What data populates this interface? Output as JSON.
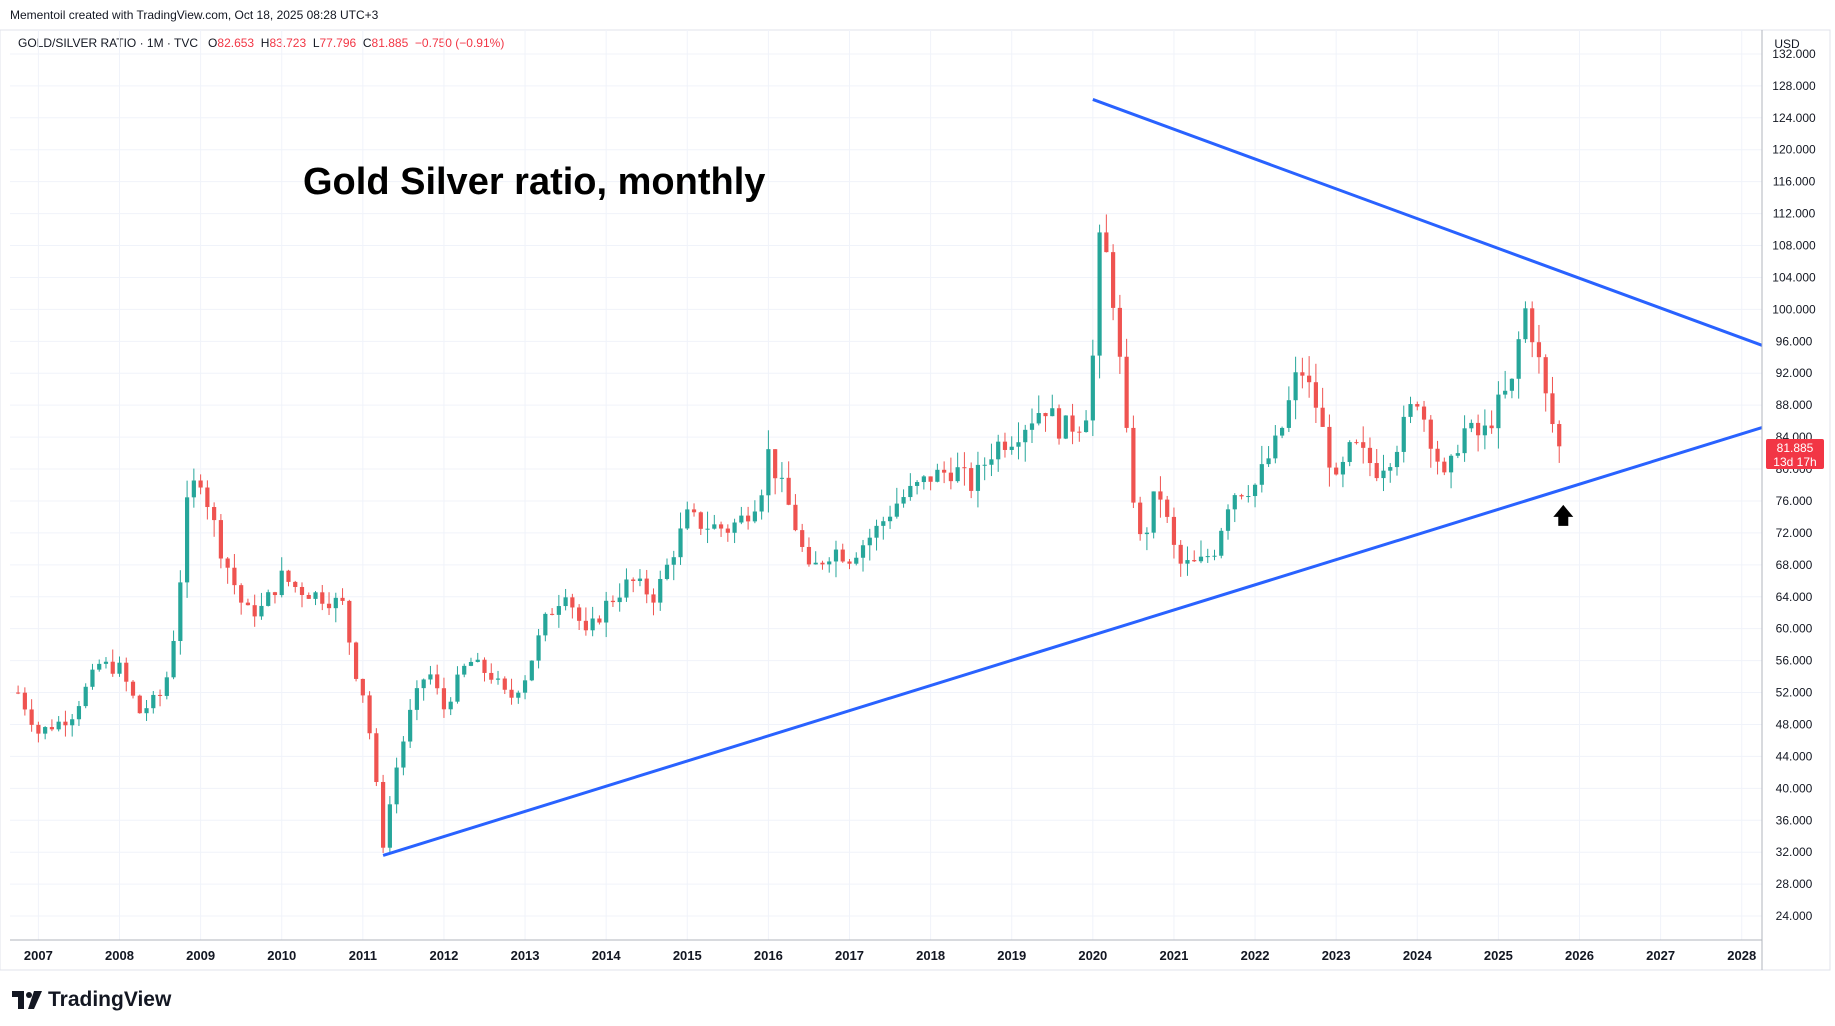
{
  "header": {
    "credit": "Mementoil created with TradingView.com, Oct 18, 2025 08:28 UTC+3"
  },
  "legend": {
    "symbol": "GOLD/SILVER RATIO · 1M · TVC",
    "o_label": "O",
    "o_value": "82.653",
    "h_label": "H",
    "h_value": "83.723",
    "l_label": "L",
    "l_value": "77.796",
    "c_label": "C",
    "c_value": "81.885",
    "change": "−0.750 (−0.91%)"
  },
  "brand": {
    "name": "TradingView",
    "icon": "tradingview-logo-icon"
  },
  "colors": {
    "up": "#26a69a",
    "down": "#ef5350",
    "trendline": "#2962ff",
    "grid": "#f0f3fa",
    "axis_text": "#131722",
    "price_tag": "#f23645"
  },
  "chart_data": {
    "type": "candlestick",
    "title": "Gold Silver ratio, monthly",
    "currency": "USD",
    "x_tick_labels": [
      "2007",
      "2008",
      "2009",
      "2010",
      "2011",
      "2012",
      "2013",
      "2014",
      "2015",
      "2016",
      "2017",
      "2018",
      "2019",
      "2020",
      "2021",
      "2022",
      "2023",
      "2024",
      "2025",
      "2026",
      "2027",
      "2028"
    ],
    "y_tick_labels": [
      "24.000",
      "28.000",
      "32.000",
      "36.000",
      "40.000",
      "44.000",
      "48.000",
      "52.000",
      "56.000",
      "60.000",
      "64.000",
      "68.000",
      "72.000",
      "76.000",
      "80.000",
      "84.000",
      "88.000",
      "92.000",
      "96.000",
      "100.000",
      "104.000",
      "108.000",
      "112.000",
      "116.000",
      "120.000",
      "124.000",
      "128.000",
      "132.000"
    ],
    "y_range": [
      21,
      135
    ],
    "x_range": [
      2006.65,
      2028.25
    ],
    "last_price": "81.885",
    "last_price_countdown": "13d 17h",
    "grid": true,
    "trendlines": [
      {
        "name": "upper",
        "from": [
          2020.0,
          126.3
        ],
        "to": [
          2028.25,
          95.5
        ]
      },
      {
        "name": "lower",
        "from": [
          2011.25,
          31.6
        ],
        "to": [
          2028.25,
          85.2
        ]
      }
    ],
    "annotations": [
      {
        "type": "arrow-up",
        "x": 2025.8,
        "y": 74.0
      }
    ],
    "anchors": [
      [
        2006.75,
        52.0
      ],
      [
        2007.0,
        47.0
      ],
      [
        2007.4,
        49.0
      ],
      [
        2007.75,
        55.5
      ],
      [
        2008.0,
        55.0
      ],
      [
        2008.25,
        49.5
      ],
      [
        2008.55,
        52.0
      ],
      [
        2008.7,
        61.0
      ],
      [
        2008.85,
        77.0
      ],
      [
        2009.0,
        79.0
      ],
      [
        2009.25,
        70.0
      ],
      [
        2009.55,
        62.0
      ],
      [
        2009.75,
        62.5
      ],
      [
        2010.0,
        66.5
      ],
      [
        2010.2,
        65.0
      ],
      [
        2010.5,
        64.0
      ],
      [
        2010.75,
        63.0
      ],
      [
        2010.9,
        55.0
      ],
      [
        2011.0,
        52.0
      ],
      [
        2011.1,
        46.0
      ],
      [
        2011.25,
        33.0
      ],
      [
        2011.4,
        42.0
      ],
      [
        2011.6,
        50.0
      ],
      [
        2011.8,
        55.0
      ],
      [
        2012.0,
        50.0
      ],
      [
        2012.3,
        56.0
      ],
      [
        2012.6,
        54.0
      ],
      [
        2012.8,
        51.0
      ],
      [
        2013.0,
        54.0
      ],
      [
        2013.25,
        61.0
      ],
      [
        2013.5,
        65.0
      ],
      [
        2013.75,
        59.0
      ],
      [
        2014.0,
        63.0
      ],
      [
        2014.3,
        66.0
      ],
      [
        2014.6,
        64.0
      ],
      [
        2014.8,
        69.0
      ],
      [
        2015.0,
        74.0
      ],
      [
        2015.2,
        73.0
      ],
      [
        2015.5,
        72.5
      ],
      [
        2015.7,
        74.0
      ],
      [
        2015.9,
        77.0
      ],
      [
        2016.0,
        82.0
      ],
      [
        2016.3,
        74.0
      ],
      [
        2016.5,
        67.0
      ],
      [
        2016.8,
        70.0
      ],
      [
        2017.0,
        69.0
      ],
      [
        2017.3,
        72.0
      ],
      [
        2017.6,
        76.0
      ],
      [
        2018.0,
        79.0
      ],
      [
        2018.3,
        80.0
      ],
      [
        2018.5,
        78.0
      ],
      [
        2018.8,
        83.0
      ],
      [
        2019.0,
        84.0
      ],
      [
        2019.4,
        88.0
      ],
      [
        2019.6,
        85.0
      ],
      [
        2019.9,
        86.0
      ],
      [
        2020.0,
        94.0
      ],
      [
        2020.08,
        108.0
      ],
      [
        2020.2,
        106.0
      ],
      [
        2020.3,
        97.0
      ],
      [
        2020.45,
        80.0
      ],
      [
        2020.6,
        70.0
      ],
      [
        2020.8,
        78.0
      ],
      [
        2020.95,
        72.0
      ],
      [
        2021.05,
        68.0
      ],
      [
        2021.3,
        68.0
      ],
      [
        2021.5,
        70.0
      ],
      [
        2021.7,
        77.0
      ],
      [
        2022.0,
        78.0
      ],
      [
        2022.3,
        84.0
      ],
      [
        2022.55,
        93.0
      ],
      [
        2022.75,
        88.0
      ],
      [
        2023.0,
        78.0
      ],
      [
        2023.2,
        83.0
      ],
      [
        2023.5,
        80.0
      ],
      [
        2023.7,
        82.0
      ],
      [
        2023.9,
        87.0
      ],
      [
        2024.0,
        89.0
      ],
      [
        2024.2,
        83.0
      ],
      [
        2024.35,
        78.0
      ],
      [
        2024.55,
        85.0
      ],
      [
        2024.8,
        84.0
      ],
      [
        2025.0,
        88.0
      ],
      [
        2025.2,
        91.0
      ],
      [
        2025.3,
        101.0
      ],
      [
        2025.45,
        96.0
      ],
      [
        2025.6,
        88.0
      ],
      [
        2025.75,
        82.653
      ],
      [
        2025.79,
        81.885
      ]
    ],
    "series": [
      {
        "name": "",
        "interval": "1M",
        "open_up_markers": "generated monthly between anchors"
      }
    ]
  }
}
